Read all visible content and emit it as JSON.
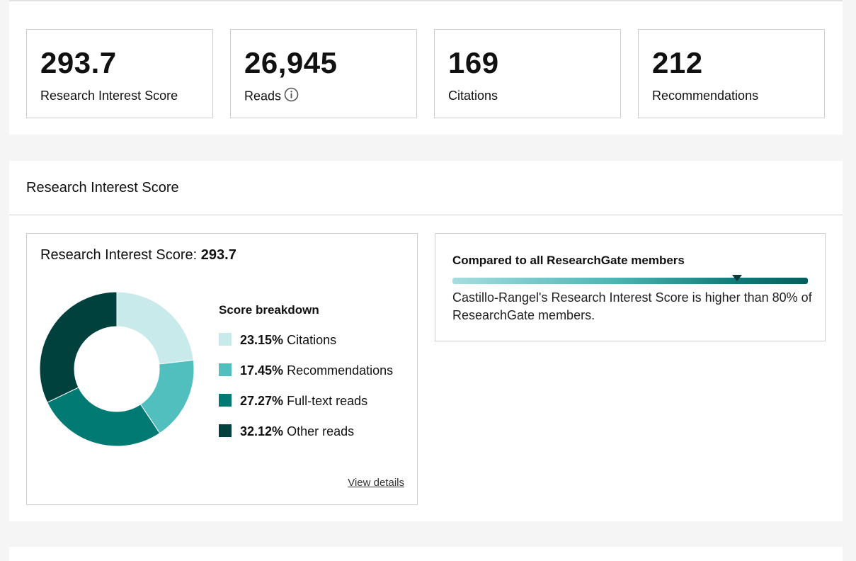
{
  "stats": [
    {
      "value": "293.7",
      "label": "Research Interest Score",
      "info": false
    },
    {
      "value": "26,945",
      "label": "Reads",
      "info": true
    },
    {
      "value": "169",
      "label": "Citations",
      "info": false
    },
    {
      "value": "212",
      "label": "Recommendations",
      "info": false
    }
  ],
  "ris_section": {
    "title": "Research Interest Score",
    "breakdown_label": "Research Interest Score: ",
    "breakdown_value": "293.7",
    "legend_title": "Score breakdown",
    "items": [
      {
        "percent": "23.15%",
        "label": "Citations",
        "value": 23.15,
        "color": "#c9eaea"
      },
      {
        "percent": "17.45%",
        "label": "Recommendations",
        "value": 17.45,
        "color": "#52bfbf"
      },
      {
        "percent": "27.27%",
        "label": "Full-text reads",
        "value": 27.27,
        "color": "#007a73"
      },
      {
        "percent": "32.12%",
        "label": "Other reads",
        "value": 32.12,
        "color": "#00403d"
      }
    ],
    "view_details": "View details"
  },
  "comparison": {
    "title": "Compared to all ResearchGate members",
    "percentile": 80,
    "text": "Castillo-Rangel's Research Interest Score is higher than 80% of ResearchGate members."
  },
  "icons": {
    "info": "info-circle-icon"
  }
}
